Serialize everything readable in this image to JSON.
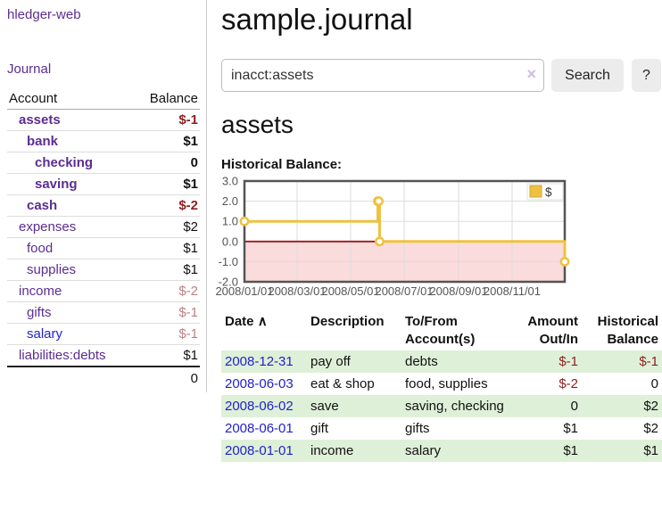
{
  "app": {
    "title": "hledger-web"
  },
  "sidebar": {
    "journal_link": "Journal",
    "accounts_header": {
      "account": "Account",
      "balance": "Balance"
    },
    "accounts": [
      {
        "name": "assets",
        "balance": "$-1",
        "level": 1,
        "bold": true,
        "negative": "dark"
      },
      {
        "name": "bank",
        "balance": "$1",
        "level": 2,
        "bold": true,
        "negative": null
      },
      {
        "name": "checking",
        "balance": "0",
        "level": 3,
        "bold": true,
        "negative": null
      },
      {
        "name": "saving",
        "balance": "$1",
        "level": 3,
        "bold": true,
        "negative": null
      },
      {
        "name": "cash",
        "balance": "$-2",
        "level": 2,
        "bold": true,
        "negative": "dark"
      },
      {
        "name": "expenses",
        "balance": "$2",
        "level": 1,
        "bold": false,
        "negative": null
      },
      {
        "name": "food",
        "balance": "$1",
        "level": 2,
        "bold": false,
        "negative": null
      },
      {
        "name": "supplies",
        "balance": "$1",
        "level": 2,
        "bold": false,
        "negative": null
      },
      {
        "name": "income",
        "balance": "$-2",
        "level": 1,
        "bold": false,
        "negative": "light"
      },
      {
        "name": "gifts",
        "balance": "$-1",
        "level": 2,
        "bold": false,
        "negative": "light"
      },
      {
        "name": "salary",
        "balance": "$-1",
        "level": 2,
        "bold": false,
        "negative": "light",
        "link_color": "blue"
      },
      {
        "name": "liabilities:debts",
        "balance": "$1",
        "level": 1,
        "bold": false,
        "negative": null
      }
    ],
    "total": "0"
  },
  "main": {
    "title": "sample.journal",
    "search": {
      "value": "inacct:assets",
      "clear_icon": "×",
      "button_label": "Search",
      "help_label": "?"
    },
    "account_heading": "assets",
    "chart_label": "Historical Balance:"
  },
  "chart_data": {
    "type": "line",
    "style": "steps",
    "title": "Historical Balance",
    "series": [
      {
        "name": "$",
        "color": "#edc240",
        "points": [
          [
            "2008-01-01",
            1
          ],
          [
            "2008-06-01",
            2
          ],
          [
            "2008-06-02",
            2
          ],
          [
            "2008-06-03",
            0
          ],
          [
            "2008-12-31",
            -1
          ]
        ]
      }
    ],
    "xlim": [
      "2008-01-01",
      "2008-12-31"
    ],
    "ylim": [
      -2,
      3
    ],
    "y_ticks": [
      "3.0",
      "2.0",
      "1.0",
      "0.0",
      "-1.0",
      "-2.0"
    ],
    "y_tick_values": [
      3,
      2,
      1,
      0,
      -1,
      -2
    ],
    "x_ticks": [
      "2008/01/01",
      "2008/03/01",
      "2008/05/01",
      "2008/07/01",
      "2008/09/01",
      "2008/11/01"
    ],
    "grid": true,
    "legend_position": "top-right",
    "negative_region_color": "#fbdcdc",
    "zero_line_color": "#a81414",
    "border_color": "#545454",
    "gridline_color": "#dcdcdc",
    "tick_label_color": "#555555"
  },
  "table": {
    "headers": {
      "date": "Date",
      "sort_icon": "∧",
      "description": "Description",
      "tofrom_line1": "To/From",
      "tofrom_line2": "Account(s)",
      "amount_line1": "Amount",
      "amount_line2": "Out/In",
      "balance_line1": "Historical",
      "balance_line2": "Balance"
    },
    "rows": [
      {
        "date": "2008-12-31",
        "description": "pay off",
        "tofrom": "debts",
        "amount": "$-1",
        "balance": "$-1"
      },
      {
        "date": "2008-06-03",
        "description": "eat & shop",
        "tofrom": "food, supplies",
        "amount": "$-2",
        "balance": "0"
      },
      {
        "date": "2008-06-02",
        "description": "save",
        "tofrom": "saving, checking",
        "amount": "0",
        "balance": "$2"
      },
      {
        "date": "2008-06-01",
        "description": "gift",
        "tofrom": "gifts",
        "amount": "$1",
        "balance": "$2"
      },
      {
        "date": "2008-01-01",
        "description": "income",
        "tofrom": "salary",
        "amount": "$1",
        "balance": "$1"
      }
    ]
  },
  "colors": {
    "purple_link": "#5c2d91",
    "blue_link": "#2222cc",
    "neg_dark": "#8e1f1f",
    "neg_light": "#bc8181",
    "row_stripe_green": "#dff0d8",
    "series_gold": "#edc240",
    "text": "#111111"
  }
}
